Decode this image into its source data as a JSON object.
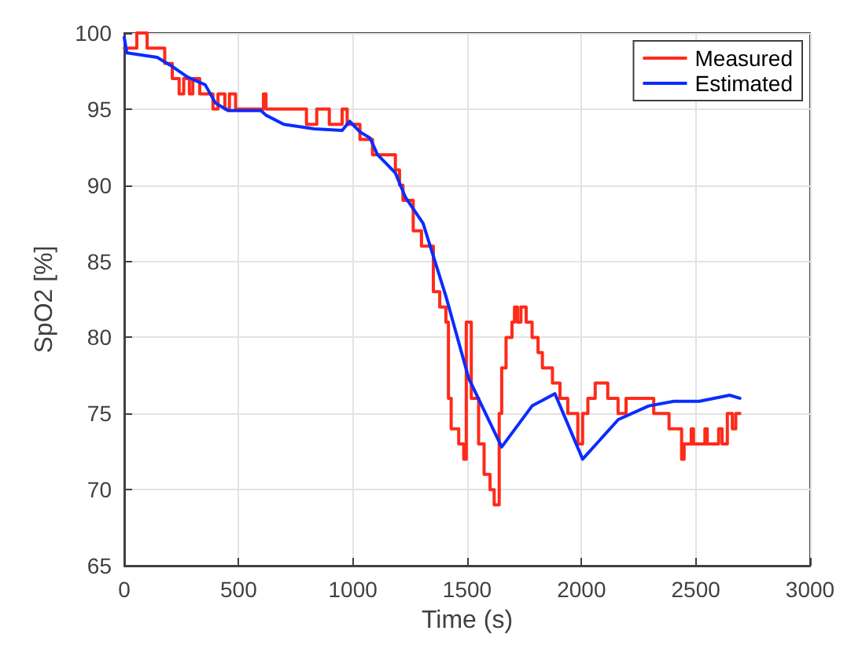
{
  "chart_data": {
    "type": "line",
    "xlabel": "Time (s)",
    "ylabel": "SpO2 [%]",
    "xlim": [
      0,
      3000
    ],
    "xticks": [
      0,
      500,
      1000,
      1500,
      2000,
      2500,
      3000
    ],
    "ylim": [
      65,
      100
    ],
    "yticks": [
      65,
      70,
      75,
      80,
      85,
      90,
      95,
      100
    ],
    "grid": true,
    "legend": "top right",
    "marker": "none",
    "line_style": "solid",
    "series": [
      {
        "name": "Measured",
        "type": "step",
        "color": "#ff2a1a",
        "x": [
          0,
          55,
          100,
          177,
          210,
          240,
          260,
          285,
          300,
          330,
          355,
          388,
          410,
          440,
          460,
          487,
          609,
          620,
          797,
          842,
          897,
          953,
          975,
          997,
          1031,
          1086,
          1186,
          1204,
          1219,
          1231,
          1264,
          1300,
          1352,
          1380,
          1407,
          1418,
          1430,
          1463,
          1485,
          1496,
          1518,
          1550,
          1574,
          1600,
          1618,
          1640,
          1651,
          1670,
          1696,
          1707,
          1720,
          1735,
          1758,
          1784,
          1810,
          1829,
          1873,
          1906,
          1940,
          1984,
          2005,
          2028,
          2060,
          2106,
          2115,
          2160,
          2183,
          2195,
          2228,
          2316,
          2383,
          2427,
          2438,
          2449,
          2480,
          2490,
          2540,
          2550,
          2600,
          2615,
          2638,
          2660,
          2675,
          2693
        ],
        "values": [
          99,
          100,
          99,
          98,
          97,
          96,
          97,
          96,
          97,
          96,
          96,
          95,
          96,
          95,
          96,
          95,
          96,
          95,
          94,
          95,
          94,
          95,
          94,
          94,
          93,
          92,
          91,
          90,
          89,
          89,
          87,
          86,
          83,
          82,
          81,
          76,
          74,
          73,
          72,
          81,
          76,
          73,
          71,
          70,
          69,
          75,
          78,
          80,
          81,
          82,
          81,
          82,
          81,
          80,
          79,
          78,
          77,
          76,
          75,
          73,
          75,
          76,
          77,
          77,
          76,
          75,
          75,
          76,
          76,
          75,
          74,
          74,
          72,
          73,
          74,
          73,
          74,
          73,
          74,
          73,
          75,
          74,
          75,
          75
        ]
      },
      {
        "name": "Estimated",
        "color": "#0a2cff",
        "x": [
          0,
          11,
          144,
          210,
          277,
          354,
          399,
          454,
          598,
          620,
          698,
          831,
          953,
          986,
          1031,
          1075,
          1108,
          1186,
          1230,
          1307,
          1407,
          1507,
          1651,
          1784,
          1884,
          2005,
          2161,
          2294,
          2404,
          2515,
          2648,
          2693
        ],
        "values": [
          99.7,
          98.7,
          98.4,
          97.8,
          97.1,
          96.6,
          95.4,
          94.9,
          94.9,
          94.6,
          94.0,
          93.7,
          93.6,
          94.2,
          93.5,
          93.1,
          92.0,
          90.8,
          89.2,
          87.5,
          82.7,
          77.3,
          72.8,
          75.5,
          76.3,
          72.0,
          74.6,
          75.5,
          75.8,
          75.8,
          76.2,
          76.0
        ]
      }
    ]
  }
}
